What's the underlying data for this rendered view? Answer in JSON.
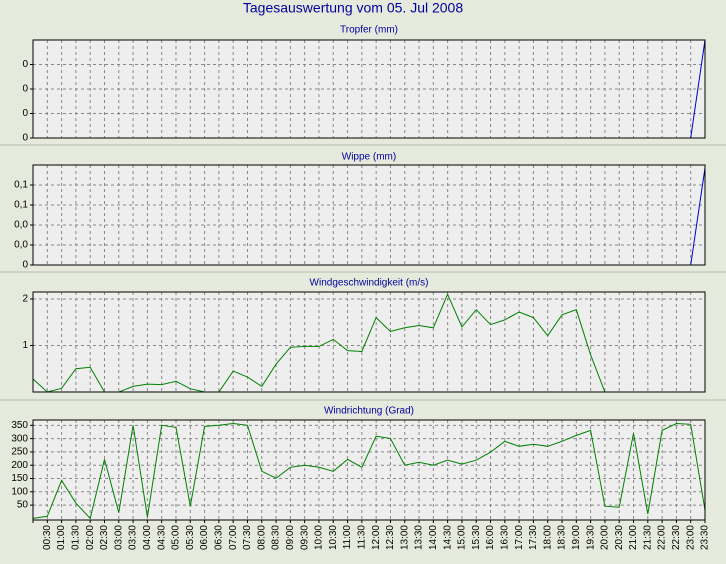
{
  "title": "Tagesauswertung vom 05. Jul 2008",
  "chart_data": [
    {
      "type": "line",
      "title": "Tropfer (mm)",
      "color": "#0000c8",
      "grid": true,
      "ylim": [
        0,
        0.2
      ],
      "yticks": [
        {
          "value": 0,
          "label": "0"
        },
        {
          "value": 0.05,
          "label": "0"
        },
        {
          "value": 0.1,
          "label": "0"
        },
        {
          "value": 0.15,
          "label": "0"
        }
      ],
      "values": [
        0,
        0,
        0,
        0,
        0,
        0,
        0,
        0,
        0,
        0,
        0,
        0,
        0,
        0,
        0,
        0,
        0,
        0,
        0,
        0,
        0,
        0,
        0,
        0,
        0,
        0,
        0,
        0,
        0,
        0,
        0,
        0,
        0,
        0,
        0,
        0,
        0,
        0,
        0,
        0,
        0,
        0,
        0,
        0,
        0,
        0,
        0,
        0.2
      ]
    },
    {
      "type": "line",
      "title": "Wippe (mm)",
      "color": "#0000c8",
      "grid": true,
      "ylim": [
        0,
        0.1
      ],
      "yticks": [
        {
          "value": 0,
          "label": "0"
        },
        {
          "value": 0.02,
          "label": "0,0"
        },
        {
          "value": 0.04,
          "label": "0,0"
        },
        {
          "value": 0.06,
          "label": "0,1"
        },
        {
          "value": 0.08,
          "label": "0,1"
        }
      ],
      "values": [
        0,
        0,
        0,
        0,
        0,
        0,
        0,
        0,
        0,
        0,
        0,
        0,
        0,
        0,
        0,
        0,
        0,
        0,
        0,
        0,
        0,
        0,
        0,
        0,
        0,
        0,
        0,
        0,
        0,
        0,
        0,
        0,
        0,
        0,
        0,
        0,
        0,
        0,
        0,
        0,
        0,
        0,
        0,
        0,
        0,
        0,
        0,
        0.097
      ]
    },
    {
      "type": "line",
      "title": "Windgeschwindigkeit (m/s)",
      "color": "#008000",
      "grid": true,
      "ylim": [
        0,
        2.15
      ],
      "yticks": [
        1,
        2
      ],
      "values": [
        0.28,
        0,
        0.08,
        0.5,
        0.53,
        0,
        0,
        0.12,
        0.17,
        0.16,
        0.23,
        0.07,
        0,
        0,
        0.45,
        0.32,
        0.12,
        0.6,
        0.96,
        0.98,
        0.98,
        1.13,
        0.89,
        0.87,
        1.6,
        1.3,
        1.38,
        1.43,
        1.38,
        2.1,
        1.4,
        1.77,
        1.45,
        1.55,
        1.72,
        1.6,
        1.21,
        1.66,
        1.77,
        0.8,
        0,
        0,
        0,
        0,
        0,
        0,
        0,
        0
      ]
    },
    {
      "type": "line",
      "title": "Windrichtung (Grad)",
      "color": "#008000",
      "grid": true,
      "ylim": [
        -6,
        370
      ],
      "yticks": [
        50,
        100,
        150,
        200,
        250,
        300,
        350
      ],
      "categories": [
        null,
        "00:30",
        "01:00",
        "01:30",
        "02:00",
        "02:30",
        "03:00",
        "03:30",
        "04:00",
        "04:30",
        "05:00",
        "05:30",
        "06:00",
        "06:30",
        "07:00",
        "07:30",
        "08:00",
        "08:30",
        "09:00",
        "09:30",
        "10:00",
        "10:30",
        "11:00",
        "11:30",
        "12:00",
        "12:30",
        "13:00",
        "13:30",
        "14:00",
        "14:30",
        "15:00",
        "15:30",
        "16:00",
        "16:30",
        "17:00",
        "17:30",
        "18:00",
        "18:30",
        "19:00",
        "19:30",
        "20:00",
        "20:30",
        "21:00",
        "21:30",
        "22:00",
        "22:30",
        "23:00",
        "23:30"
      ],
      "values": [
        0,
        8,
        143,
        57,
        0,
        222,
        22,
        350,
        5,
        350,
        342,
        46,
        346,
        350,
        357,
        350,
        177,
        151,
        192,
        200,
        192,
        177,
        222,
        192,
        309,
        301,
        200,
        211,
        200,
        219,
        204,
        219,
        249,
        290,
        271,
        279,
        271,
        290,
        312,
        331,
        46,
        42,
        320,
        16,
        331,
        357,
        354,
        31
      ]
    }
  ]
}
